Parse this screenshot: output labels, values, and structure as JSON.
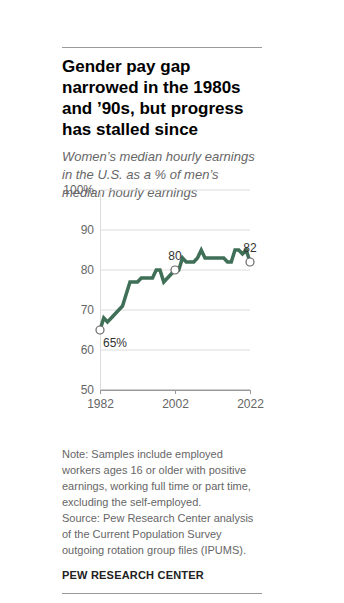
{
  "chart_data": {
    "type": "line",
    "title": "Gender pay gap narrowed in the 1980s and ’90s, but progress has stalled since",
    "subtitle": "Women’s median hourly earnings in the U.S. as a % of men’s median hourly earnings",
    "note": "Note: Samples include employed workers ages 16 or older with positive earnings, working full time or part time, excluding the self-employed.",
    "source": "Source: Pew Research Center analysis of the Current Population Survey outgoing rotation group files (IPUMS).",
    "credit": "PEW RESEARCH CENTER",
    "x": [
      1982,
      1983,
      1984,
      1985,
      1986,
      1987,
      1988,
      1989,
      1990,
      1991,
      1992,
      1993,
      1994,
      1995,
      1996,
      1997,
      1998,
      1999,
      2000,
      2001,
      2002,
      2003,
      2004,
      2005,
      2006,
      2007,
      2008,
      2009,
      2010,
      2011,
      2012,
      2013,
      2014,
      2015,
      2016,
      2017,
      2018,
      2019,
      2020,
      2021,
      2022
    ],
    "values": [
      65,
      68,
      67,
      68,
      69,
      70,
      71,
      74,
      77,
      77,
      77,
      78,
      78,
      78,
      78,
      80,
      80,
      77,
      78,
      79,
      80,
      80,
      83,
      82,
      82,
      82,
      83,
      85,
      83,
      83,
      83,
      83,
      83,
      83,
      82,
      82,
      85,
      85,
      84,
      85,
      82
    ],
    "value_labels": [
      "65%",
      null,
      null,
      null,
      null,
      null,
      null,
      null,
      null,
      null,
      null,
      null,
      null,
      null,
      null,
      null,
      null,
      null,
      null,
      null,
      "80",
      null,
      null,
      null,
      null,
      null,
      null,
      null,
      null,
      null,
      null,
      null,
      null,
      null,
      null,
      null,
      null,
      null,
      null,
      null,
      "82"
    ],
    "data_labels": true,
    "color": "#3f6f57",
    "xlim": [
      1982,
      2022
    ],
    "xticks": [
      1982,
      2002,
      2022
    ],
    "ylim": [
      50,
      100
    ],
    "yticks": [
      50,
      60,
      70,
      80,
      90,
      {
        "value": 100,
        "label": "100%"
      }
    ],
    "grid": true
  }
}
